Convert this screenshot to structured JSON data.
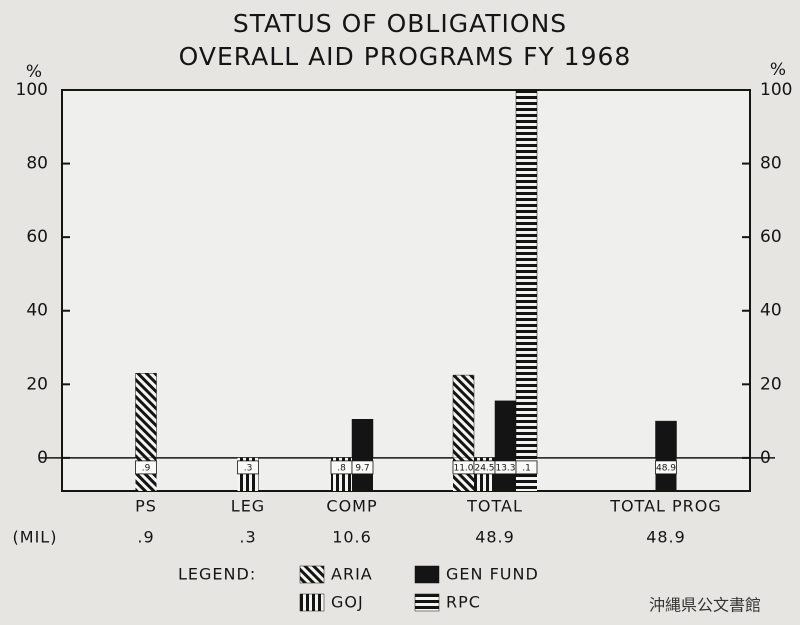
{
  "chart_data": {
    "type": "bar",
    "title": [
      "STATUS OF OBLIGATIONS",
      "OVERALL AID PROGRAMS FY 1968"
    ],
    "ylabel": "%",
    "y2label": "%",
    "categories": [
      "PS",
      "LEG",
      "COMP",
      "TOTAL",
      "TOTAL PROG"
    ],
    "series": [
      {
        "name": "ARIA",
        "color": "#141414",
        "pattern": "diagonal",
        "values": [
          23,
          null,
          null,
          22.5,
          null
        ],
        "amounts": [
          0.9,
          null,
          null,
          11.0,
          null
        ],
        "amount_labels": [
          ".9",
          null,
          null,
          "11.0",
          null
        ]
      },
      {
        "name": "GOJ",
        "color": "#141414",
        "pattern": "vertical",
        "values": [
          null,
          0,
          0,
          0,
          null
        ],
        "amounts": [
          null,
          0.3,
          0.8,
          24.5,
          null
        ],
        "amount_labels": [
          null,
          ".3",
          ".8",
          "24.5",
          null
        ]
      },
      {
        "name": "GEN FUND",
        "color": "#141414",
        "pattern": "solid",
        "values": [
          null,
          null,
          10.5,
          15.5,
          10
        ],
        "amounts": [
          null,
          null,
          9.7,
          13.3,
          48.9
        ],
        "amount_labels": [
          null,
          null,
          "9.7",
          "13.3",
          "48.9"
        ]
      },
      {
        "name": "RPC",
        "color": "#141414",
        "pattern": "horizontal",
        "values": [
          null,
          null,
          null,
          100,
          null
        ],
        "amounts": [
          null,
          null,
          null,
          0.1,
          null
        ],
        "amount_labels": [
          null,
          null,
          null,
          ".1",
          null
        ]
      }
    ],
    "mil_label": "(MIL)",
    "mil_values": [
      0.9,
      0.3,
      10.6,
      48.9,
      48.9
    ],
    "mil_labels": [
      ".9",
      ".3",
      "10.6",
      "48.9",
      "48.9"
    ],
    "legend_title": "LEGEND:",
    "ylim": [
      -9,
      100
    ],
    "yticks": [
      0,
      20,
      40,
      60,
      80,
      100
    ],
    "y2lim": [
      -9,
      100
    ],
    "y2ticks": [
      0,
      20,
      40,
      60,
      80,
      100
    ],
    "watermark": "沖縄県公文書館"
  }
}
